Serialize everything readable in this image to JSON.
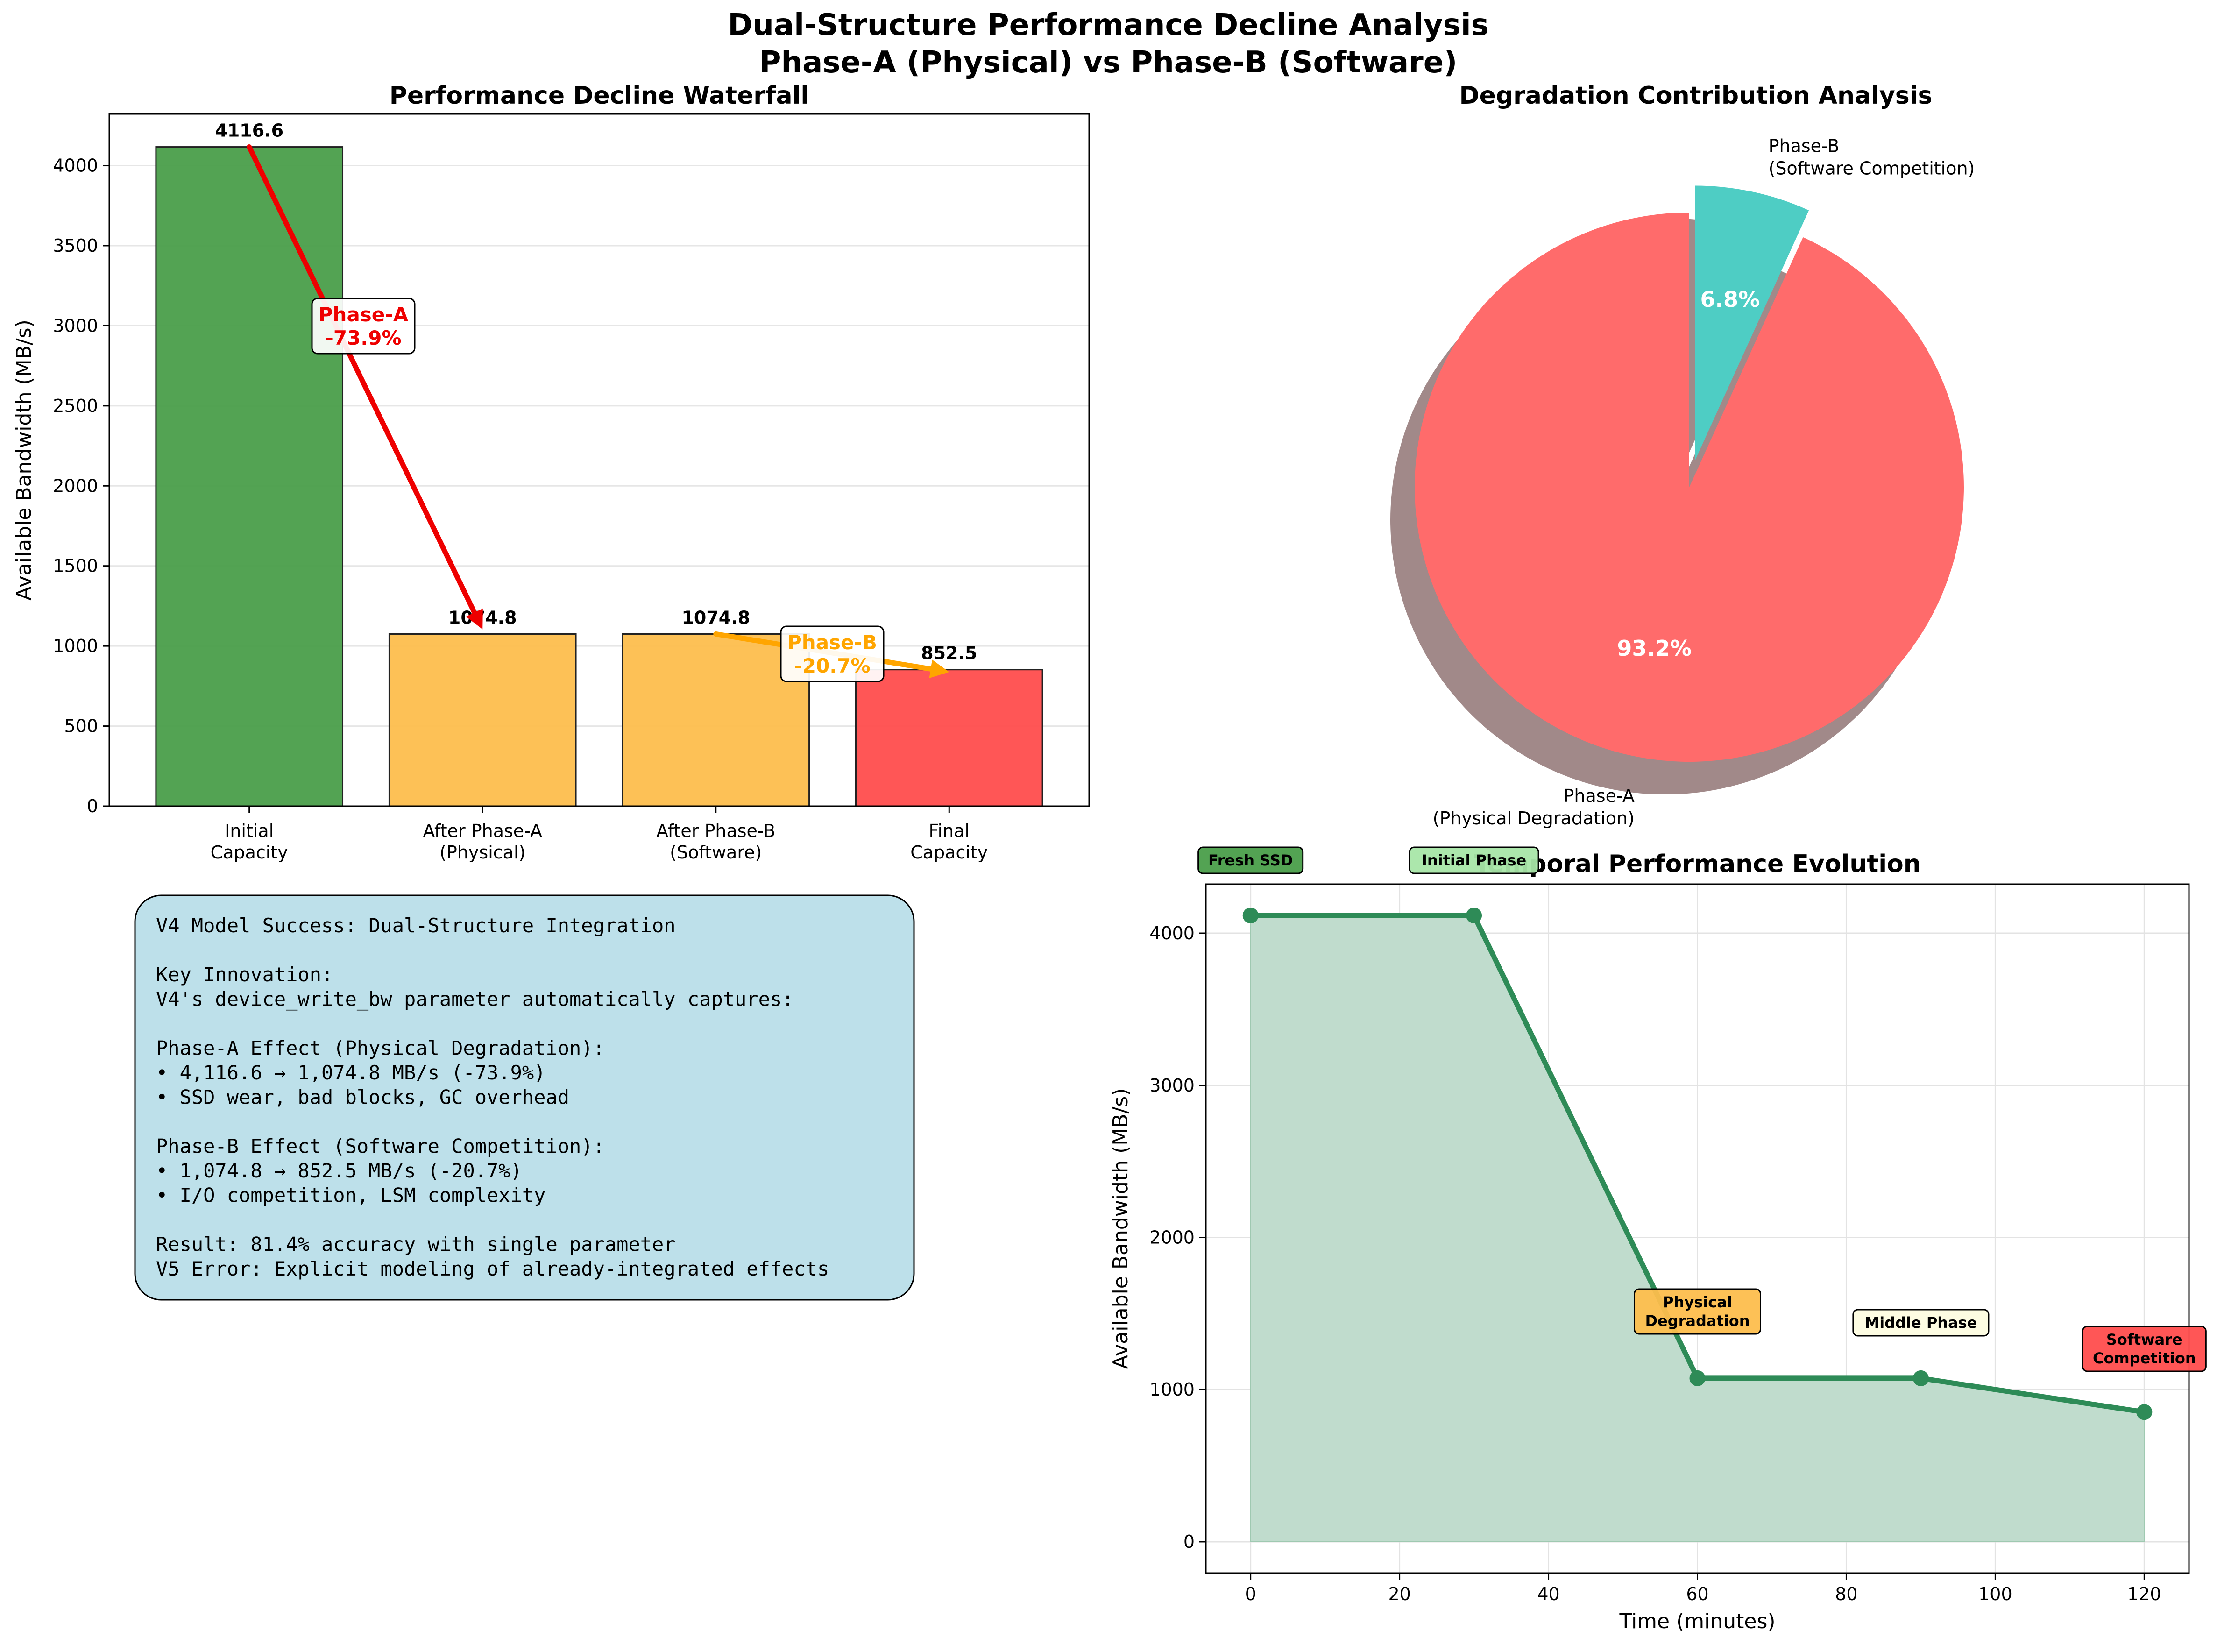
{
  "figure": {
    "title_line1": "Dual-Structure Performance Decline Analysis",
    "title_line2": "Phase-A (Physical) vs Phase-B (Software)"
  },
  "colors": {
    "green": "#4a9e4a",
    "orange": "#fdbe4d",
    "red": "#ff4d4d",
    "pie_red": "#ff6b6b",
    "pie_teal": "#4ecdc4",
    "line_green": "#2e8b57",
    "fill_green": "#c0dccd",
    "note_bg": "#bde0ea",
    "arrow_red": "#ee0000",
    "arrow_orange": "#ffa500"
  },
  "waterfall": {
    "title": "Performance Decline Waterfall",
    "ylabel": "Available Bandwidth (MB/s)",
    "phase_a_label": [
      "Phase-A",
      "-73.9%"
    ],
    "phase_b_label": [
      "Phase-B",
      "-20.7%"
    ]
  },
  "pie": {
    "title": "Degradation Contribution Analysis",
    "labels": [
      [
        "Phase-A",
        "(Physical Degradation)"
      ],
      [
        "Phase-B",
        "(Software Competition)"
      ]
    ],
    "pct_labels": [
      "93.2%",
      "6.8%"
    ]
  },
  "timeline": {
    "title": "Temporal Performance Evolution",
    "xlabel": "Time (minutes)",
    "ylabel": "Available Bandwidth (MB/s)",
    "phase_labels": [
      {
        "lines": [
          "Fresh SSD"
        ],
        "color": "#4a9e4a"
      },
      {
        "lines": [
          "Initial Phase"
        ],
        "color": "#a8e6a8"
      },
      {
        "lines": [
          "Physical",
          "Degradation"
        ],
        "color": "#fdbe4d"
      },
      {
        "lines": [
          "Middle Phase"
        ],
        "color": "#fdfce0"
      },
      {
        "lines": [
          "Software",
          "Competition"
        ],
        "color": "#ff4d4d"
      }
    ]
  },
  "note": {
    "lines": [
      "V4 Model Success: Dual-Structure Integration",
      "",
      "Key Innovation:",
      "V4's device_write_bw parameter automatically captures:",
      "",
      "Phase-A Effect (Physical Degradation):",
      "• 4,116.6 → 1,074.8 MB/s (-73.9%)",
      "• SSD wear, bad blocks, GC overhead",
      "",
      "Phase-B Effect (Software Competition):",
      "• 1,074.8 → 852.5 MB/s (-20.7%)",
      "• I/O competition, LSM complexity",
      "",
      "Result: 81.4% accuracy with single parameter",
      "V5 Error: Explicit modeling of already-integrated effects"
    ]
  },
  "chart_data": [
    {
      "type": "bar",
      "title": "Performance Decline Waterfall",
      "categories": [
        [
          "Initial",
          "Capacity"
        ],
        [
          "After Phase-A",
          "(Physical)"
        ],
        [
          "After Phase-B",
          "(Software)"
        ],
        [
          "Final",
          "Capacity"
        ]
      ],
      "values": [
        4116.6,
        1074.8,
        1074.8,
        852.5
      ],
      "value_labels": [
        "4116.6",
        "1074.8",
        "1074.8",
        "852.5"
      ],
      "ylabel": "Available Bandwidth (MB/s)",
      "ylim": [
        0,
        4322.4
      ],
      "yticks": [
        0,
        500,
        1000,
        1500,
        2000,
        2500,
        3000,
        3500,
        4000
      ],
      "grid": "y"
    },
    {
      "type": "pie",
      "title": "Degradation Contribution Analysis",
      "labels": [
        "Phase-A (Physical Degradation)",
        "Phase-B (Software Competition)"
      ],
      "values": [
        93.2,
        6.8
      ],
      "explode": [
        0,
        0.1
      ],
      "shadow": true
    },
    {
      "type": "line",
      "title": "Temporal Performance Evolution",
      "x": [
        0,
        30,
        60,
        90,
        120
      ],
      "y": [
        4116.6,
        4116.6,
        1074.8,
        1074.8,
        852.5
      ],
      "xlabel": "Time (minutes)",
      "ylabel": "Available Bandwidth (MB/s)",
      "xlim": [
        -6,
        126
      ],
      "ylim": [
        -205.8,
        4322.4
      ],
      "xticks": [
        0,
        20,
        40,
        60,
        80,
        100,
        120
      ],
      "yticks": [
        0,
        1000,
        2000,
        3000,
        4000
      ],
      "grid": true,
      "filled": true
    }
  ]
}
